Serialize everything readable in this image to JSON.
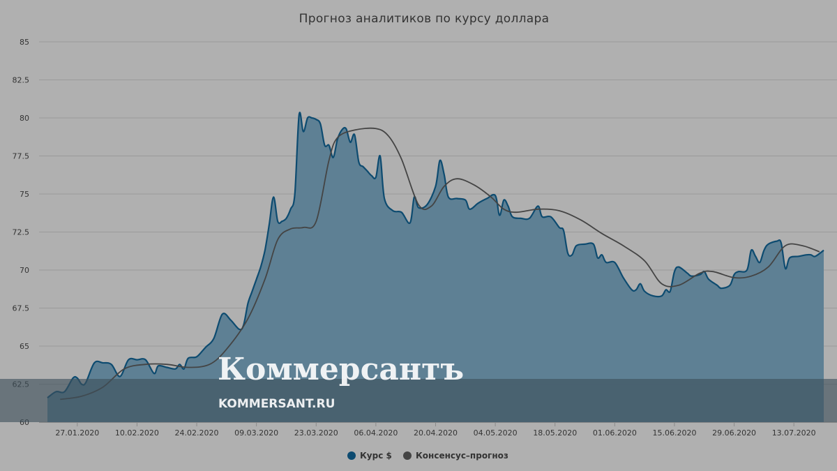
{
  "chart_data": {
    "type": "area",
    "title": "Прогноз аналитиков по курсу доллара",
    "xlabel": "",
    "ylabel": "",
    "ylim": [
      60,
      85
    ],
    "yticks": [
      60,
      62.5,
      65,
      67.5,
      70,
      72.5,
      75,
      77.5,
      80,
      82.5,
      85
    ],
    "xlim": [
      "2020-01-20",
      "2020-07-20"
    ],
    "xticks": [
      "27.01.2020",
      "10.02.2020",
      "24.02.2020",
      "09.03.2020",
      "23.03.2020",
      "06.04.2020",
      "20.04.2020",
      "04.05.2020",
      "18.05.2020",
      "01.06.2020",
      "15.06.2020",
      "29.06.2020",
      "13.07.2020"
    ],
    "grid": true,
    "legend_position": "bottom-center",
    "series": [
      {
        "name": "Курс $",
        "type": "area",
        "color": "#0d4b70",
        "points": [
          [
            "2020-01-20",
            61.6
          ],
          [
            "2020-01-22",
            62.0
          ],
          [
            "2020-01-24",
            62.0
          ],
          [
            "2020-01-26",
            62.9
          ],
          [
            "2020-01-27",
            62.9
          ],
          [
            "2020-01-28",
            62.5
          ],
          [
            "2020-01-29",
            62.6
          ],
          [
            "2020-01-31",
            63.9
          ],
          [
            "2020-02-02",
            63.9
          ],
          [
            "2020-02-04",
            63.8
          ],
          [
            "2020-02-06",
            63.0
          ],
          [
            "2020-02-08",
            64.1
          ],
          [
            "2020-02-10",
            64.1
          ],
          [
            "2020-02-12",
            64.1
          ],
          [
            "2020-02-14",
            63.2
          ],
          [
            "2020-02-15",
            63.7
          ],
          [
            "2020-02-17",
            63.6
          ],
          [
            "2020-02-19",
            63.5
          ],
          [
            "2020-02-20",
            63.8
          ],
          [
            "2020-02-21",
            63.5
          ],
          [
            "2020-02-22",
            64.2
          ],
          [
            "2020-02-24",
            64.3
          ],
          [
            "2020-02-26",
            64.9
          ],
          [
            "2020-02-28",
            65.5
          ],
          [
            "2020-03-01",
            67.1
          ],
          [
            "2020-03-03",
            66.7
          ],
          [
            "2020-03-05",
            66.1
          ],
          [
            "2020-03-06",
            66.4
          ],
          [
            "2020-03-07",
            67.8
          ],
          [
            "2020-03-08",
            68.6
          ],
          [
            "2020-03-09",
            69.4
          ],
          [
            "2020-03-10",
            70.2
          ],
          [
            "2020-03-11",
            71.3
          ],
          [
            "2020-03-12",
            73.0
          ],
          [
            "2020-03-13",
            74.8
          ],
          [
            "2020-03-14",
            73.2
          ],
          [
            "2020-03-15",
            73.2
          ],
          [
            "2020-03-16",
            73.4
          ],
          [
            "2020-03-17",
            74.0
          ],
          [
            "2020-03-18",
            75.0
          ],
          [
            "2020-03-19",
            80.2
          ],
          [
            "2020-03-20",
            79.1
          ],
          [
            "2020-03-21",
            80.0
          ],
          [
            "2020-03-22",
            80.0
          ],
          [
            "2020-03-23",
            79.9
          ],
          [
            "2020-03-24",
            79.6
          ],
          [
            "2020-03-25",
            78.2
          ],
          [
            "2020-03-26",
            78.2
          ],
          [
            "2020-03-27",
            77.4
          ],
          [
            "2020-03-28",
            78.6
          ],
          [
            "2020-03-29",
            79.2
          ],
          [
            "2020-03-30",
            79.3
          ],
          [
            "2020-03-31",
            78.4
          ],
          [
            "2020-04-01",
            78.9
          ],
          [
            "2020-04-02",
            77.1
          ],
          [
            "2020-04-03",
            76.8
          ],
          [
            "2020-04-04",
            76.5
          ],
          [
            "2020-04-05",
            76.2
          ],
          [
            "2020-04-06",
            76.1
          ],
          [
            "2020-04-07",
            77.5
          ],
          [
            "2020-04-08",
            74.7
          ],
          [
            "2020-04-10",
            73.9
          ],
          [
            "2020-04-12",
            73.8
          ],
          [
            "2020-04-14",
            73.1
          ],
          [
            "2020-04-15",
            74.8
          ],
          [
            "2020-04-16",
            74.1
          ],
          [
            "2020-04-18",
            74.3
          ],
          [
            "2020-04-20",
            75.5
          ],
          [
            "2020-04-21",
            77.2
          ],
          [
            "2020-04-22",
            76.3
          ],
          [
            "2020-04-23",
            74.8
          ],
          [
            "2020-04-25",
            74.7
          ],
          [
            "2020-04-27",
            74.6
          ],
          [
            "2020-04-28",
            74.0
          ],
          [
            "2020-04-30",
            74.4
          ],
          [
            "2020-05-02",
            74.7
          ],
          [
            "2020-05-04",
            74.9
          ],
          [
            "2020-05-05",
            73.6
          ],
          [
            "2020-05-06",
            74.6
          ],
          [
            "2020-05-07",
            74.2
          ],
          [
            "2020-05-08",
            73.5
          ],
          [
            "2020-05-10",
            73.4
          ],
          [
            "2020-05-12",
            73.4
          ],
          [
            "2020-05-14",
            74.2
          ],
          [
            "2020-05-15",
            73.5
          ],
          [
            "2020-05-17",
            73.5
          ],
          [
            "2020-05-19",
            72.8
          ],
          [
            "2020-05-20",
            72.6
          ],
          [
            "2020-05-21",
            71.1
          ],
          [
            "2020-05-22",
            71.0
          ],
          [
            "2020-05-23",
            71.6
          ],
          [
            "2020-05-25",
            71.7
          ],
          [
            "2020-05-27",
            71.7
          ],
          [
            "2020-05-28",
            70.8
          ],
          [
            "2020-05-29",
            71.0
          ],
          [
            "2020-05-30",
            70.5
          ],
          [
            "2020-06-01",
            70.5
          ],
          [
            "2020-06-03",
            69.5
          ],
          [
            "2020-06-05",
            68.7
          ],
          [
            "2020-06-06",
            68.7
          ],
          [
            "2020-06-07",
            69.1
          ],
          [
            "2020-06-08",
            68.6
          ],
          [
            "2020-06-10",
            68.3
          ],
          [
            "2020-06-12",
            68.3
          ],
          [
            "2020-06-13",
            68.7
          ],
          [
            "2020-06-14",
            68.6
          ],
          [
            "2020-06-15",
            69.9
          ],
          [
            "2020-06-16",
            70.2
          ],
          [
            "2020-06-18",
            69.8
          ],
          [
            "2020-06-19",
            69.6
          ],
          [
            "2020-06-21",
            69.7
          ],
          [
            "2020-06-22",
            69.9
          ],
          [
            "2020-06-23",
            69.4
          ],
          [
            "2020-06-25",
            69.0
          ],
          [
            "2020-06-26",
            68.8
          ],
          [
            "2020-06-28",
            69.0
          ],
          [
            "2020-06-29",
            69.7
          ],
          [
            "2020-06-30",
            69.9
          ],
          [
            "2020-07-02",
            70.0
          ],
          [
            "2020-07-03",
            71.3
          ],
          [
            "2020-07-04",
            70.9
          ],
          [
            "2020-07-05",
            70.5
          ],
          [
            "2020-07-06",
            71.3
          ],
          [
            "2020-07-07",
            71.7
          ],
          [
            "2020-07-09",
            71.9
          ],
          [
            "2020-07-10",
            71.8
          ],
          [
            "2020-07-11",
            70.1
          ],
          [
            "2020-07-12",
            70.8
          ],
          [
            "2020-07-14",
            70.9
          ],
          [
            "2020-07-16",
            71.0
          ],
          [
            "2020-07-17",
            71.0
          ],
          [
            "2020-07-18",
            70.9
          ],
          [
            "2020-07-20",
            71.3
          ]
        ]
      },
      {
        "name": "Консенсус–прогноз",
        "type": "line",
        "color": "#444444",
        "points": [
          [
            "2020-01-23",
            61.5
          ],
          [
            "2020-01-28",
            61.7
          ],
          [
            "2020-02-02",
            62.3
          ],
          [
            "2020-02-07",
            63.5
          ],
          [
            "2020-02-12",
            63.8
          ],
          [
            "2020-02-17",
            63.8
          ],
          [
            "2020-02-22",
            63.6
          ],
          [
            "2020-02-27",
            63.8
          ],
          [
            "2020-03-02",
            64.8
          ],
          [
            "2020-03-07",
            66.8
          ],
          [
            "2020-03-11",
            69.4
          ],
          [
            "2020-03-14",
            72.0
          ],
          [
            "2020-03-17",
            72.7
          ],
          [
            "2020-03-20",
            72.8
          ],
          [
            "2020-03-23",
            73.2
          ],
          [
            "2020-03-26",
            77.2
          ],
          [
            "2020-03-28",
            78.7
          ],
          [
            "2020-04-01",
            79.2
          ],
          [
            "2020-04-06",
            79.3
          ],
          [
            "2020-04-09",
            78.8
          ],
          [
            "2020-04-12",
            77.3
          ],
          [
            "2020-04-16",
            74.3
          ],
          [
            "2020-04-19",
            74.2
          ],
          [
            "2020-04-22",
            75.5
          ],
          [
            "2020-04-25",
            76.0
          ],
          [
            "2020-04-29",
            75.6
          ],
          [
            "2020-05-03",
            74.8
          ],
          [
            "2020-05-06",
            74.0
          ],
          [
            "2020-05-09",
            73.8
          ],
          [
            "2020-05-14",
            74.0
          ],
          [
            "2020-05-19",
            73.9
          ],
          [
            "2020-05-24",
            73.3
          ],
          [
            "2020-05-29",
            72.4
          ],
          [
            "2020-06-03",
            71.6
          ],
          [
            "2020-06-08",
            70.6
          ],
          [
            "2020-06-12",
            69.1
          ],
          [
            "2020-06-16",
            69.0
          ],
          [
            "2020-06-21",
            69.8
          ],
          [
            "2020-06-24",
            69.9
          ],
          [
            "2020-06-29",
            69.5
          ],
          [
            "2020-07-03",
            69.6
          ],
          [
            "2020-07-07",
            70.2
          ],
          [
            "2020-07-11",
            71.6
          ],
          [
            "2020-07-15",
            71.6
          ],
          [
            "2020-07-19",
            71.2
          ]
        ]
      }
    ]
  },
  "watermark": {
    "brand": "Коммерсантъ",
    "url": "KOMMERSANT.RU"
  },
  "colors": {
    "background": "#b0b0b0",
    "area_fill": "#5a7d92",
    "area_line": "#0d4b70",
    "consensus_line": "#444444",
    "watermark_band": "#3d4f5a"
  }
}
